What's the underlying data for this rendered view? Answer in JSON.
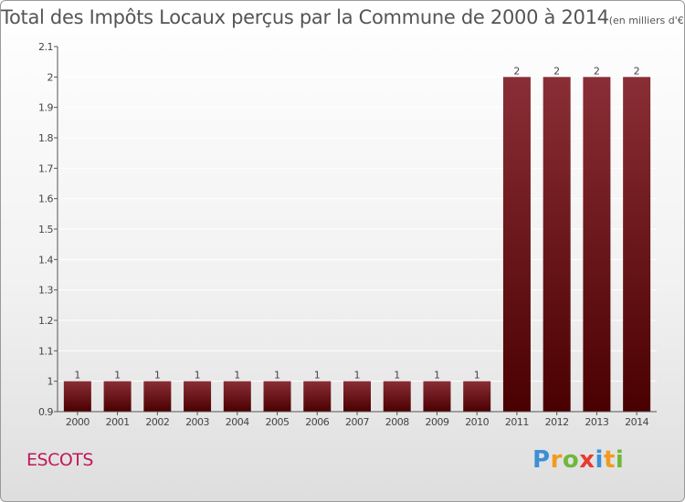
{
  "title": {
    "main": "Total des Impôts Locaux perçus par la Commune de 2000 à 2014",
    "unit": "(en milliers d'€)"
  },
  "commune": "ESCOTS",
  "logo": {
    "text": "Proxiti",
    "letters": [
      {
        "ch": "P",
        "color": "#3d8fd6"
      },
      {
        "ch": "r",
        "color": "#f29a1f"
      },
      {
        "ch": "o",
        "color": "#6fb83a"
      },
      {
        "ch": "x",
        "color": "#e63c2f"
      },
      {
        "ch": "i",
        "color": "#3d8fd6"
      },
      {
        "ch": "t",
        "color": "#f29a1f"
      },
      {
        "ch": "i",
        "color": "#6fb83a"
      }
    ]
  },
  "colors": {
    "bar_top": "#8a2e36",
    "bar_bottom": "#4a0000",
    "axis": "#555555",
    "grid": "#ffffff"
  },
  "chart_data": {
    "type": "bar",
    "title": "Total des Impôts Locaux perçus par la Commune de 2000 à 2014",
    "xlabel": "",
    "ylabel": "",
    "categories": [
      "2000",
      "2001",
      "2002",
      "2003",
      "2004",
      "2005",
      "2006",
      "2007",
      "2008",
      "2009",
      "2010",
      "2011",
      "2012",
      "2013",
      "2014"
    ],
    "values": [
      1,
      1,
      1,
      1,
      1,
      1,
      1,
      1,
      1,
      1,
      1,
      2,
      2,
      2,
      2
    ],
    "data_labels": [
      "1",
      "1",
      "1",
      "1",
      "1",
      "1",
      "1",
      "1",
      "1",
      "1",
      "1",
      "2",
      "2",
      "2",
      "2"
    ],
    "ylim": [
      0.9,
      2.1
    ],
    "yticks": [
      0.9,
      1,
      1.1,
      1.2,
      1.3,
      1.4,
      1.5,
      1.6,
      1.7,
      1.8,
      1.9,
      2,
      2.1
    ],
    "ytick_labels": [
      "0.9",
      "1",
      "1.1",
      "1.2",
      "1.3",
      "1.4",
      "1.5",
      "1.6",
      "1.7",
      "1.8",
      "1.9",
      "2",
      "2.1"
    ],
    "grid": true,
    "legend": "none"
  }
}
